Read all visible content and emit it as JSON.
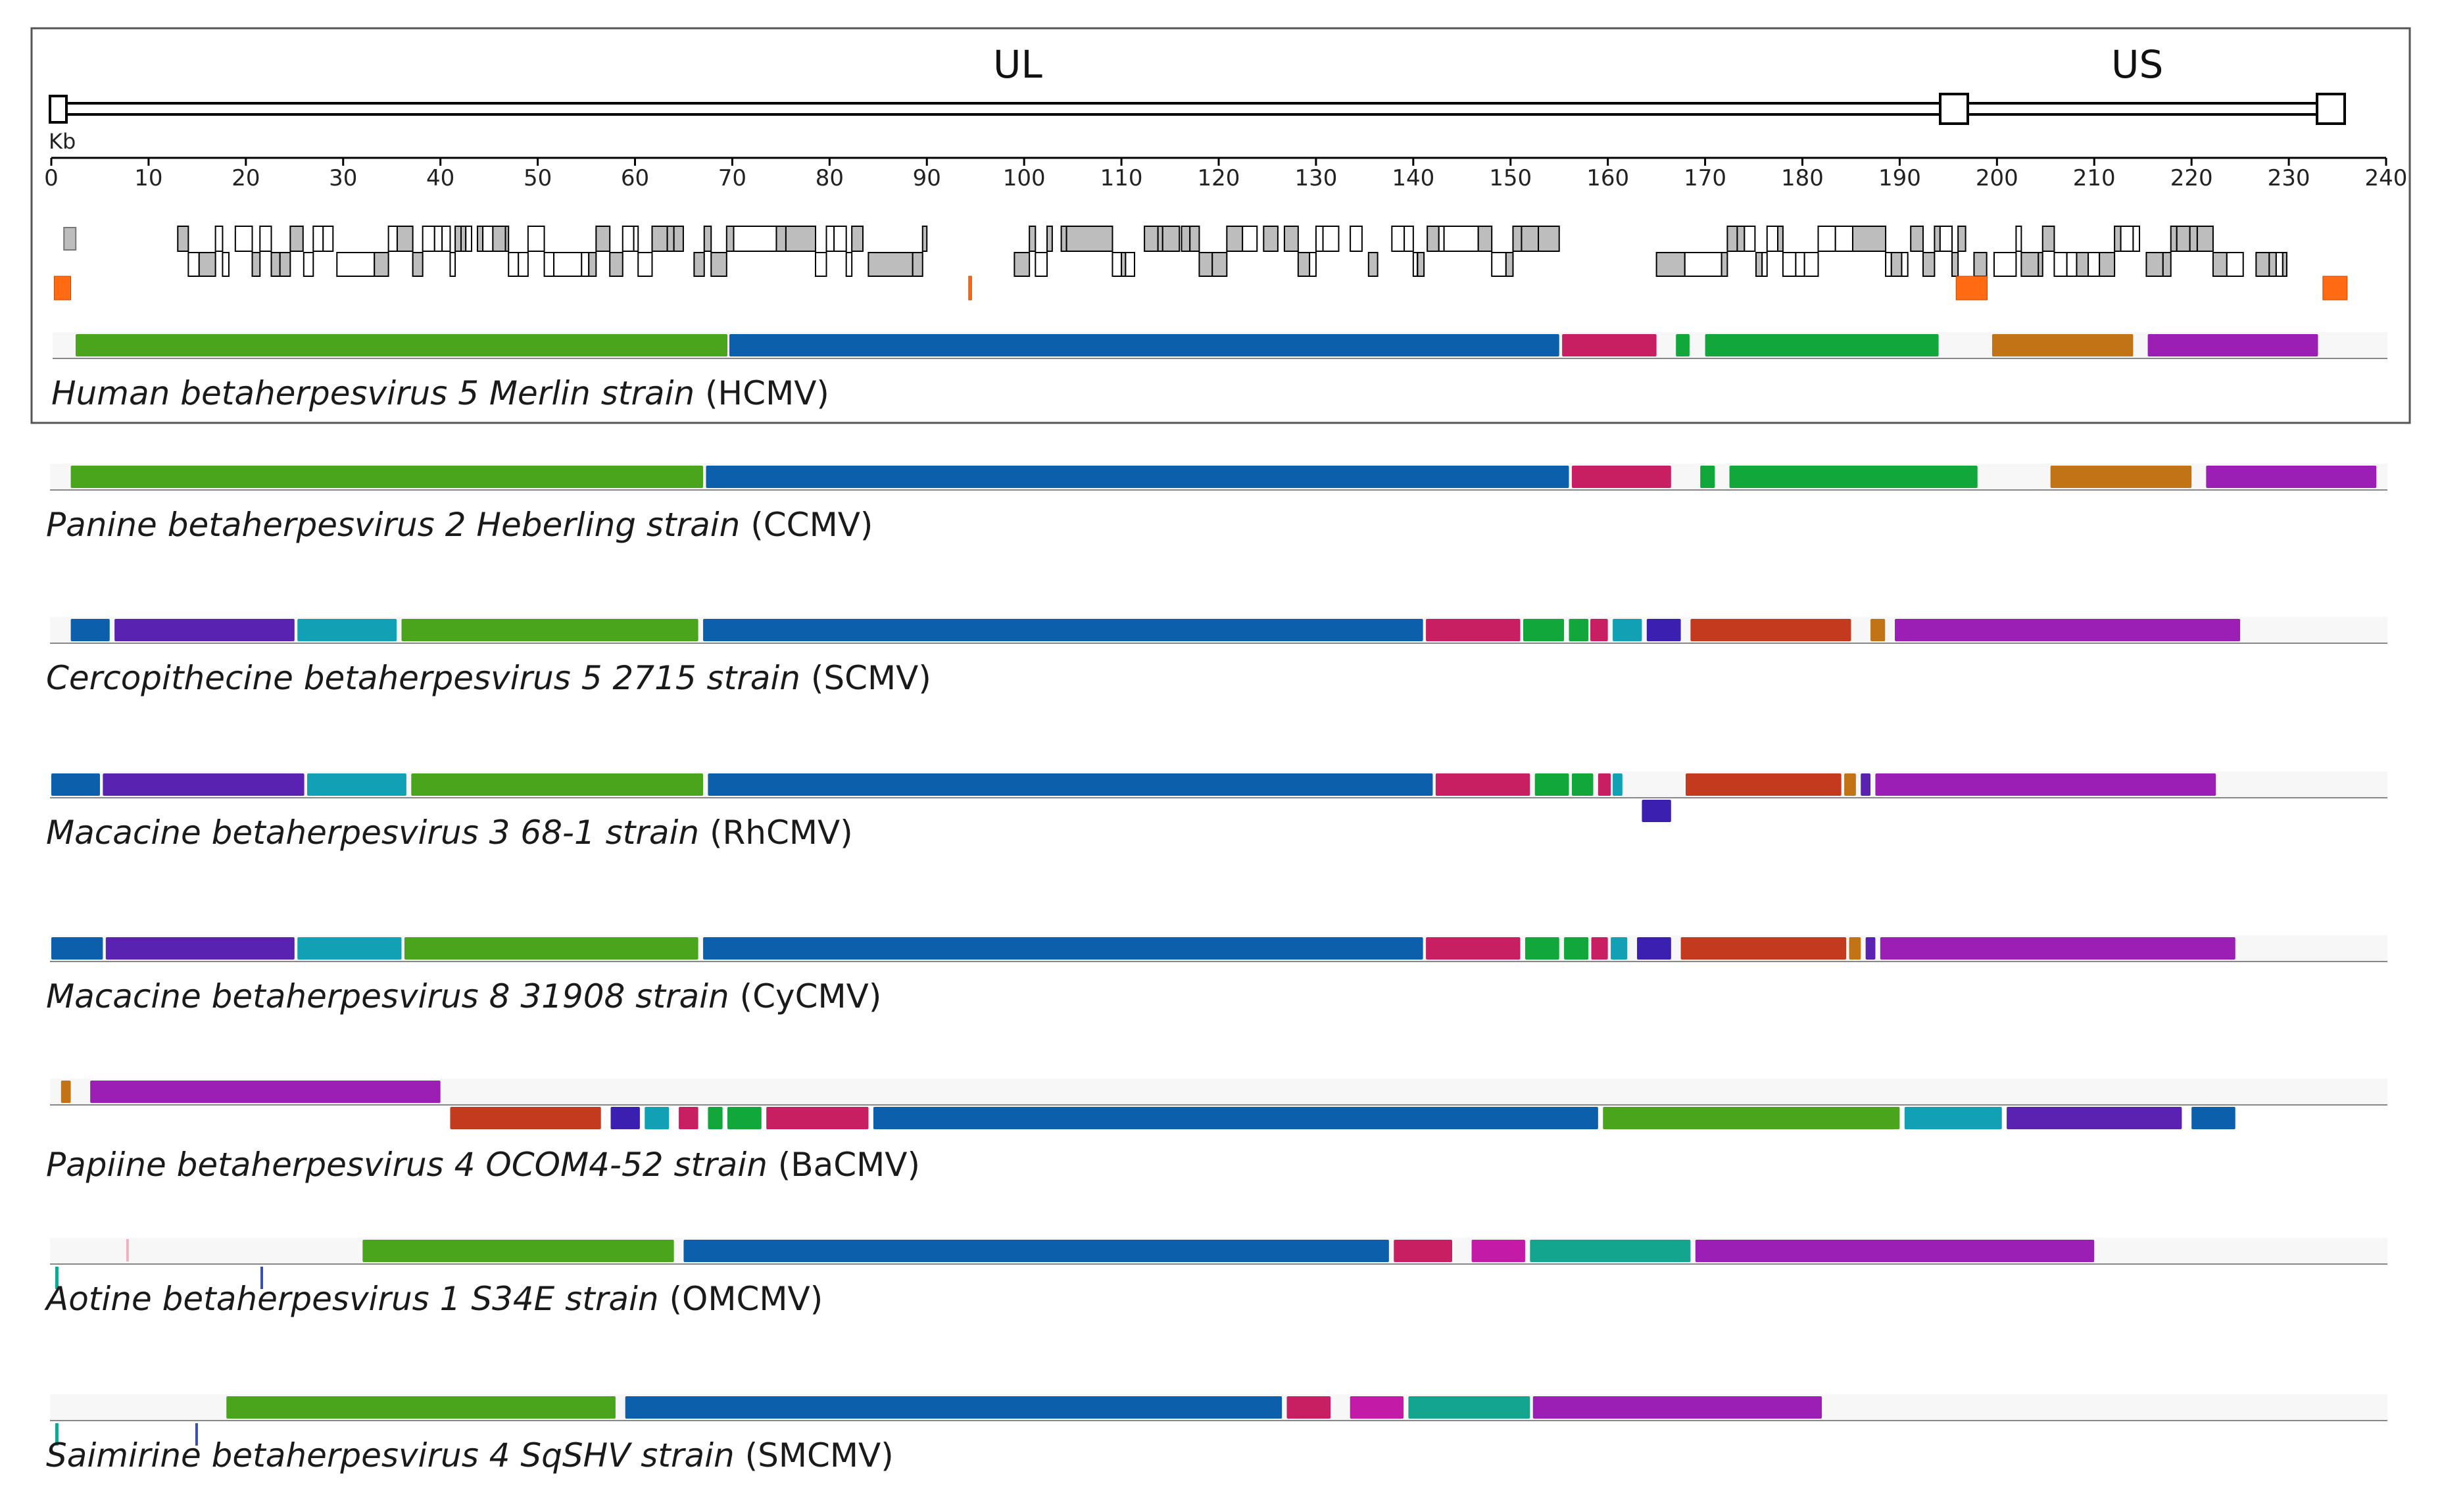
{
  "header": {
    "region_ul": "UL",
    "region_us": "US",
    "axis_unit": "Kb",
    "axis_ticks": [
      "0",
      "10",
      "20",
      "30",
      "40",
      "50",
      "60",
      "70",
      "80",
      "90",
      "100",
      "110",
      "120",
      "130",
      "140",
      "150",
      "160",
      "170",
      "180",
      "190",
      "200",
      "210",
      "220",
      "230",
      "240"
    ]
  },
  "colors": {
    "green": "#4aa51c",
    "blue": "#0b5fab",
    "magenta": "#c81f63",
    "brightgreen": "#11a73a",
    "orange": "#c17316",
    "purple": "#9b1fb4",
    "indigo": "#5a22b0",
    "teal": "#11a0b4",
    "red": "#c43a1f",
    "navy": "#3a1fb0",
    "aqua": "#14a58f",
    "pink": "#c41aa8",
    "gene_orange": "#ff6a13"
  },
  "genomes": [
    {
      "italic": "Human betaherpesvirus 5 Merlin strain",
      "abbr": " (HCMV)",
      "blocks": [
        {
          "s": 2.5,
          "e": 69.5,
          "c": "green"
        },
        {
          "s": 69.7,
          "e": 155,
          "c": "blue"
        },
        {
          "s": 155.3,
          "e": 165,
          "c": "magenta"
        },
        {
          "s": 167,
          "e": 168.4,
          "c": "brightgreen"
        },
        {
          "s": 170,
          "e": 194,
          "c": "brightgreen"
        },
        {
          "s": 199.5,
          "e": 214,
          "c": "orange"
        },
        {
          "s": 215.5,
          "e": 233,
          "c": "purple"
        }
      ]
    },
    {
      "italic": "Panine betaherpesvirus 2 Heberling strain",
      "abbr": " (CCMV)",
      "blocks": [
        {
          "s": 2,
          "e": 67,
          "c": "green"
        },
        {
          "s": 67.3,
          "e": 156,
          "c": "blue"
        },
        {
          "s": 156.3,
          "e": 166.5,
          "c": "magenta"
        },
        {
          "s": 169.5,
          "e": 171,
          "c": "brightgreen"
        },
        {
          "s": 172.5,
          "e": 198,
          "c": "brightgreen"
        },
        {
          "s": 205.5,
          "e": 220,
          "c": "orange"
        },
        {
          "s": 221.5,
          "e": 239,
          "c": "purple"
        }
      ]
    },
    {
      "italic": "Cercopithecine betaherpesvirus 5 2715 strain",
      "abbr": " (SCMV)",
      "blocks": [
        {
          "s": 2,
          "e": 6,
          "c": "blue"
        },
        {
          "s": 6.5,
          "e": 25,
          "c": "indigo"
        },
        {
          "s": 25.3,
          "e": 35.5,
          "c": "teal"
        },
        {
          "s": 36,
          "e": 66.5,
          "c": "green"
        },
        {
          "s": 67,
          "e": 141,
          "c": "blue"
        },
        {
          "s": 141.3,
          "e": 151,
          "c": "magenta"
        },
        {
          "s": 151.3,
          "e": 155.5,
          "c": "brightgreen"
        },
        {
          "s": 156,
          "e": 158,
          "c": "brightgreen"
        },
        {
          "s": 158.2,
          "e": 160,
          "c": "magenta"
        },
        {
          "s": 160.5,
          "e": 163.5,
          "c": "teal"
        },
        {
          "s": 164,
          "e": 167.5,
          "c": "navy"
        },
        {
          "s": 168.5,
          "e": 185,
          "c": "red"
        },
        {
          "s": 187,
          "e": 188.5,
          "c": "orange"
        },
        {
          "s": 189.5,
          "e": 225,
          "c": "purple"
        }
      ]
    },
    {
      "italic": "Macacine betaherpesvirus 3 68-1 strain",
      "abbr": " (RhCMV)",
      "blocks": [
        {
          "s": 0,
          "e": 5,
          "c": "blue"
        },
        {
          "s": 5.3,
          "e": 26,
          "c": "indigo"
        },
        {
          "s": 26.3,
          "e": 36.5,
          "c": "teal"
        },
        {
          "s": 37,
          "e": 67,
          "c": "green"
        },
        {
          "s": 67.5,
          "e": 142,
          "c": "blue"
        },
        {
          "s": 142.3,
          "e": 152,
          "c": "magenta"
        },
        {
          "s": 152.5,
          "e": 156,
          "c": "brightgreen"
        },
        {
          "s": 156.3,
          "e": 158.5,
          "c": "brightgreen"
        },
        {
          "s": 159,
          "e": 160.3,
          "c": "magenta"
        },
        {
          "s": 160.5,
          "e": 161.5,
          "c": "teal"
        },
        {
          "s": 163.5,
          "e": 166.5,
          "c": "navy",
          "row": 1
        },
        {
          "s": 168,
          "e": 184,
          "c": "red"
        },
        {
          "s": 184.3,
          "e": 185.5,
          "c": "orange"
        },
        {
          "s": 186,
          "e": 187,
          "c": "indigo"
        },
        {
          "s": 187.5,
          "e": 222.5,
          "c": "purple"
        }
      ]
    },
    {
      "italic": "Macacine betaherpesvirus 8 31908 strain",
      "abbr": " (CyCMV)",
      "blocks": [
        {
          "s": 0,
          "e": 5.3,
          "c": "blue"
        },
        {
          "s": 5.6,
          "e": 25,
          "c": "indigo"
        },
        {
          "s": 25.3,
          "e": 36,
          "c": "teal"
        },
        {
          "s": 36.3,
          "e": 66.5,
          "c": "green"
        },
        {
          "s": 67,
          "e": 141,
          "c": "blue"
        },
        {
          "s": 141.3,
          "e": 151,
          "c": "magenta"
        },
        {
          "s": 151.5,
          "e": 155,
          "c": "brightgreen"
        },
        {
          "s": 155.5,
          "e": 158,
          "c": "brightgreen"
        },
        {
          "s": 158.3,
          "e": 160,
          "c": "magenta"
        },
        {
          "s": 160.3,
          "e": 162,
          "c": "teal"
        },
        {
          "s": 163,
          "e": 166.5,
          "c": "navy"
        },
        {
          "s": 167.5,
          "e": 184.5,
          "c": "red"
        },
        {
          "s": 184.8,
          "e": 186,
          "c": "orange"
        },
        {
          "s": 186.5,
          "e": 187.5,
          "c": "indigo"
        },
        {
          "s": 188,
          "e": 224.5,
          "c": "purple"
        }
      ]
    },
    {
      "italic": "Papiine betaherpesvirus 4 OCOM4-52 strain",
      "abbr": " (BaCMV)",
      "blocks": [
        {
          "s": 1,
          "e": 2,
          "c": "orange"
        },
        {
          "s": 4,
          "e": 40,
          "c": "purple"
        },
        {
          "s": 41,
          "e": 56.5,
          "c": "red",
          "row": 1
        },
        {
          "s": 57.5,
          "e": 60.5,
          "c": "navy",
          "row": 1
        },
        {
          "s": 61,
          "e": 63.5,
          "c": "teal",
          "row": 1
        },
        {
          "s": 64.5,
          "e": 66.5,
          "c": "magenta",
          "row": 1
        },
        {
          "s": 67.5,
          "e": 69,
          "c": "brightgreen",
          "row": 1
        },
        {
          "s": 69.5,
          "e": 73,
          "c": "brightgreen",
          "row": 1
        },
        {
          "s": 73.5,
          "e": 84,
          "c": "magenta",
          "row": 1
        },
        {
          "s": 84.5,
          "e": 159,
          "c": "blue",
          "row": 1
        },
        {
          "s": 159.5,
          "e": 190,
          "c": "green",
          "row": 1
        },
        {
          "s": 190.5,
          "e": 200.5,
          "c": "teal",
          "row": 1
        },
        {
          "s": 201,
          "e": 219,
          "c": "indigo",
          "row": 1
        },
        {
          "s": 220,
          "e": 224.5,
          "c": "blue",
          "row": 1
        }
      ]
    },
    {
      "italic": "Aotine betaherpesvirus 1 S34E strain",
      "abbr": " (OMCMV)",
      "marks": [
        {
          "x": 0.4,
          "row": 1,
          "c": "aqua",
          "w": 5
        },
        {
          "x": 7.7,
          "row": 0,
          "c": "#f0b0c0",
          "w": 4
        },
        {
          "x": 21.5,
          "row": 1,
          "c": "#3a4fb0",
          "w": 4
        }
      ],
      "blocks": [
        {
          "s": 32,
          "e": 64,
          "c": "green"
        },
        {
          "s": 65,
          "e": 137.5,
          "c": "blue"
        },
        {
          "s": 138,
          "e": 144,
          "c": "magenta"
        },
        {
          "s": 146,
          "e": 151.5,
          "c": "pink"
        },
        {
          "s": 152,
          "e": 168.5,
          "c": "aqua"
        },
        {
          "s": 169,
          "e": 210,
          "c": "purple"
        }
      ]
    },
    {
      "italic": "Saimirine betaherpesvirus 4 SqSHV strain",
      "abbr": " (SMCMV)",
      "marks": [
        {
          "x": 0.4,
          "row": 1,
          "c": "aqua",
          "w": 5
        },
        {
          "x": 14.8,
          "row": 1,
          "c": "#3a4fb0",
          "w": 4
        }
      ],
      "blocks": [
        {
          "s": 18,
          "e": 58,
          "c": "green"
        },
        {
          "s": 59,
          "e": 126.5,
          "c": "blue"
        },
        {
          "s": 127,
          "e": 131.5,
          "c": "magenta"
        },
        {
          "s": 133.5,
          "e": 139,
          "c": "pink"
        },
        {
          "s": 139.5,
          "e": 152,
          "c": "aqua"
        },
        {
          "s": 152.3,
          "e": 182,
          "c": "purple"
        }
      ]
    }
  ]
}
